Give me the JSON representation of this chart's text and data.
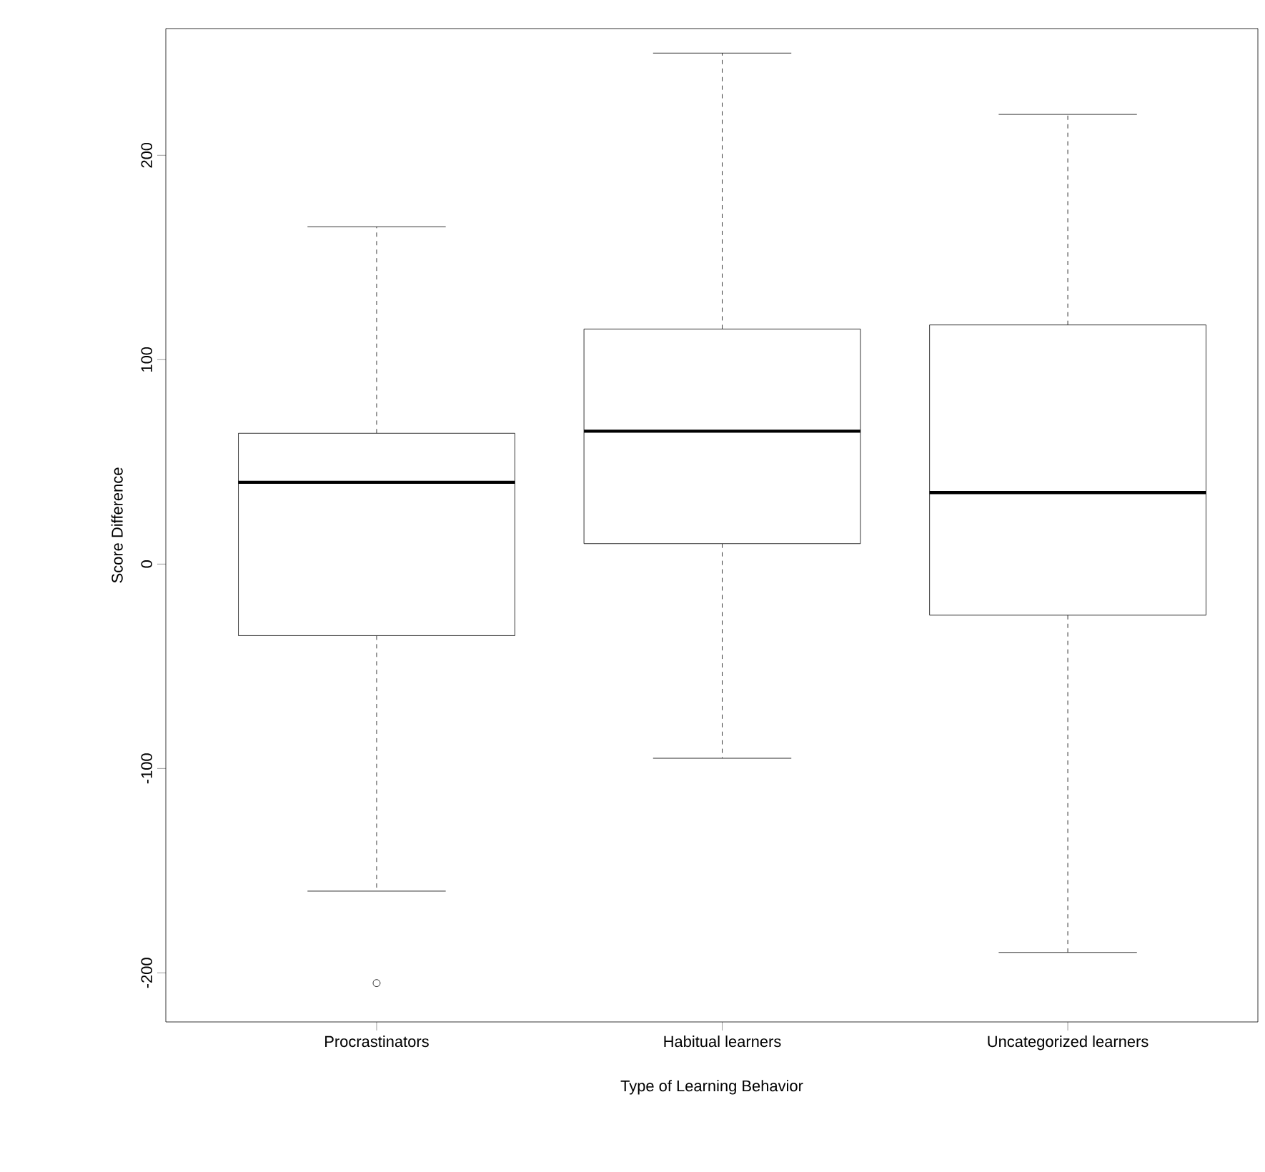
{
  "chart_data": {
    "type": "box",
    "xlabel": "Type of Learning Behavior",
    "ylabel": "Score Difference",
    "categories": [
      "Procrastinators",
      "Habitual learners",
      "Uncategorized learners"
    ],
    "boxes": [
      {
        "low": -160,
        "q1": -35,
        "median": 40,
        "q3": 64,
        "high": 165,
        "outliers": [
          -205
        ]
      },
      {
        "low": -95,
        "q1": 10,
        "median": 65,
        "q3": 115,
        "high": 250
      },
      {
        "low": -190,
        "q1": -25,
        "median": 35,
        "q3": 117,
        "high": 220
      }
    ],
    "color": "#000000",
    "ylim": [
      -224,
      262
    ],
    "yticks": [
      -200,
      -100,
      0,
      100,
      200
    ],
    "grid": false
  }
}
